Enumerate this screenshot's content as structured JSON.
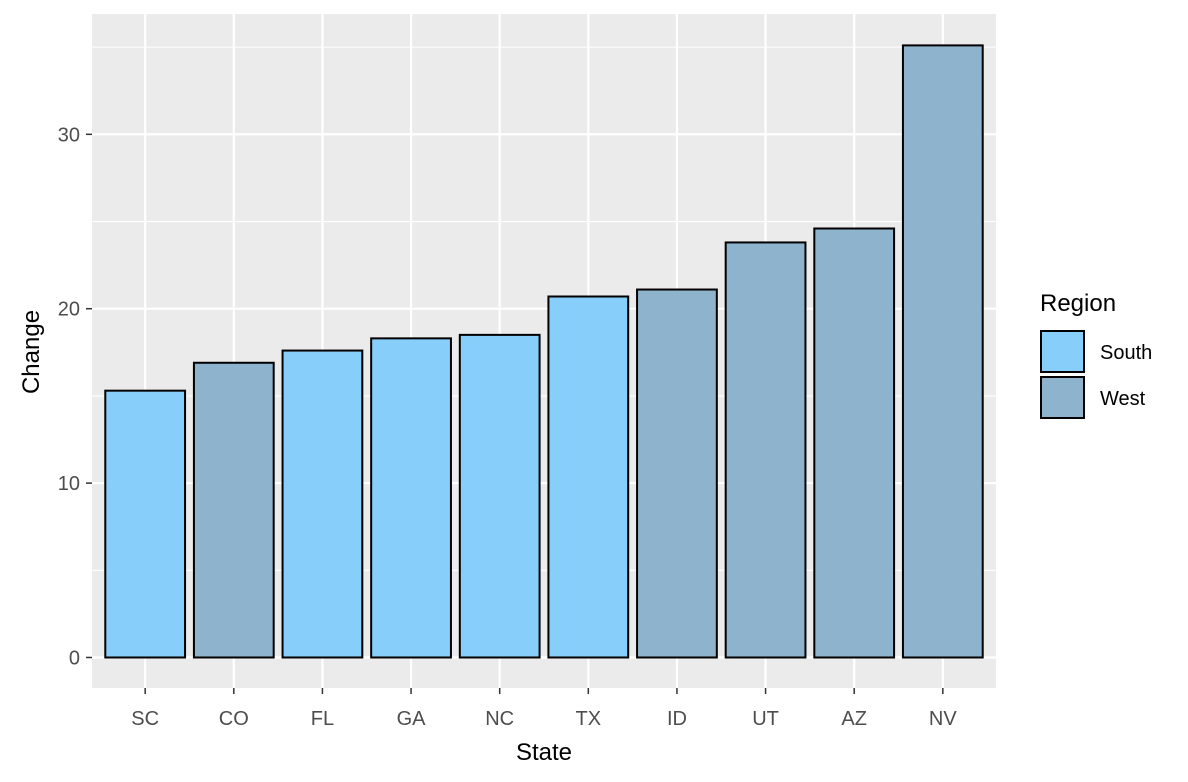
{
  "chart_data": {
    "type": "bar",
    "categories": [
      "SC",
      "CO",
      "FL",
      "GA",
      "NC",
      "TX",
      "ID",
      "UT",
      "AZ",
      "NV"
    ],
    "values": [
      15.3,
      16.9,
      17.6,
      18.3,
      18.5,
      20.7,
      21.1,
      23.8,
      24.6,
      35.1
    ],
    "groups": [
      "South",
      "West",
      "South",
      "South",
      "South",
      "South",
      "West",
      "West",
      "West",
      "West"
    ],
    "xlabel": "State",
    "ylabel": "Change",
    "ylim": [
      -1.75,
      36.9
    ],
    "yticks": [
      0,
      10,
      20,
      30
    ],
    "yticklabels": [
      "0",
      "10",
      "20",
      "30"
    ],
    "grid": true,
    "legend": {
      "title": "Region",
      "position": "right",
      "entries": [
        {
          "label": "South",
          "color": "#87CEFA"
        },
        {
          "label": "West",
          "color": "#8DB4CC"
        }
      ]
    },
    "colors": {
      "panel_background": "#EBEBEB",
      "grid": "#FFFFFF",
      "bar_outline": "#000000"
    }
  }
}
